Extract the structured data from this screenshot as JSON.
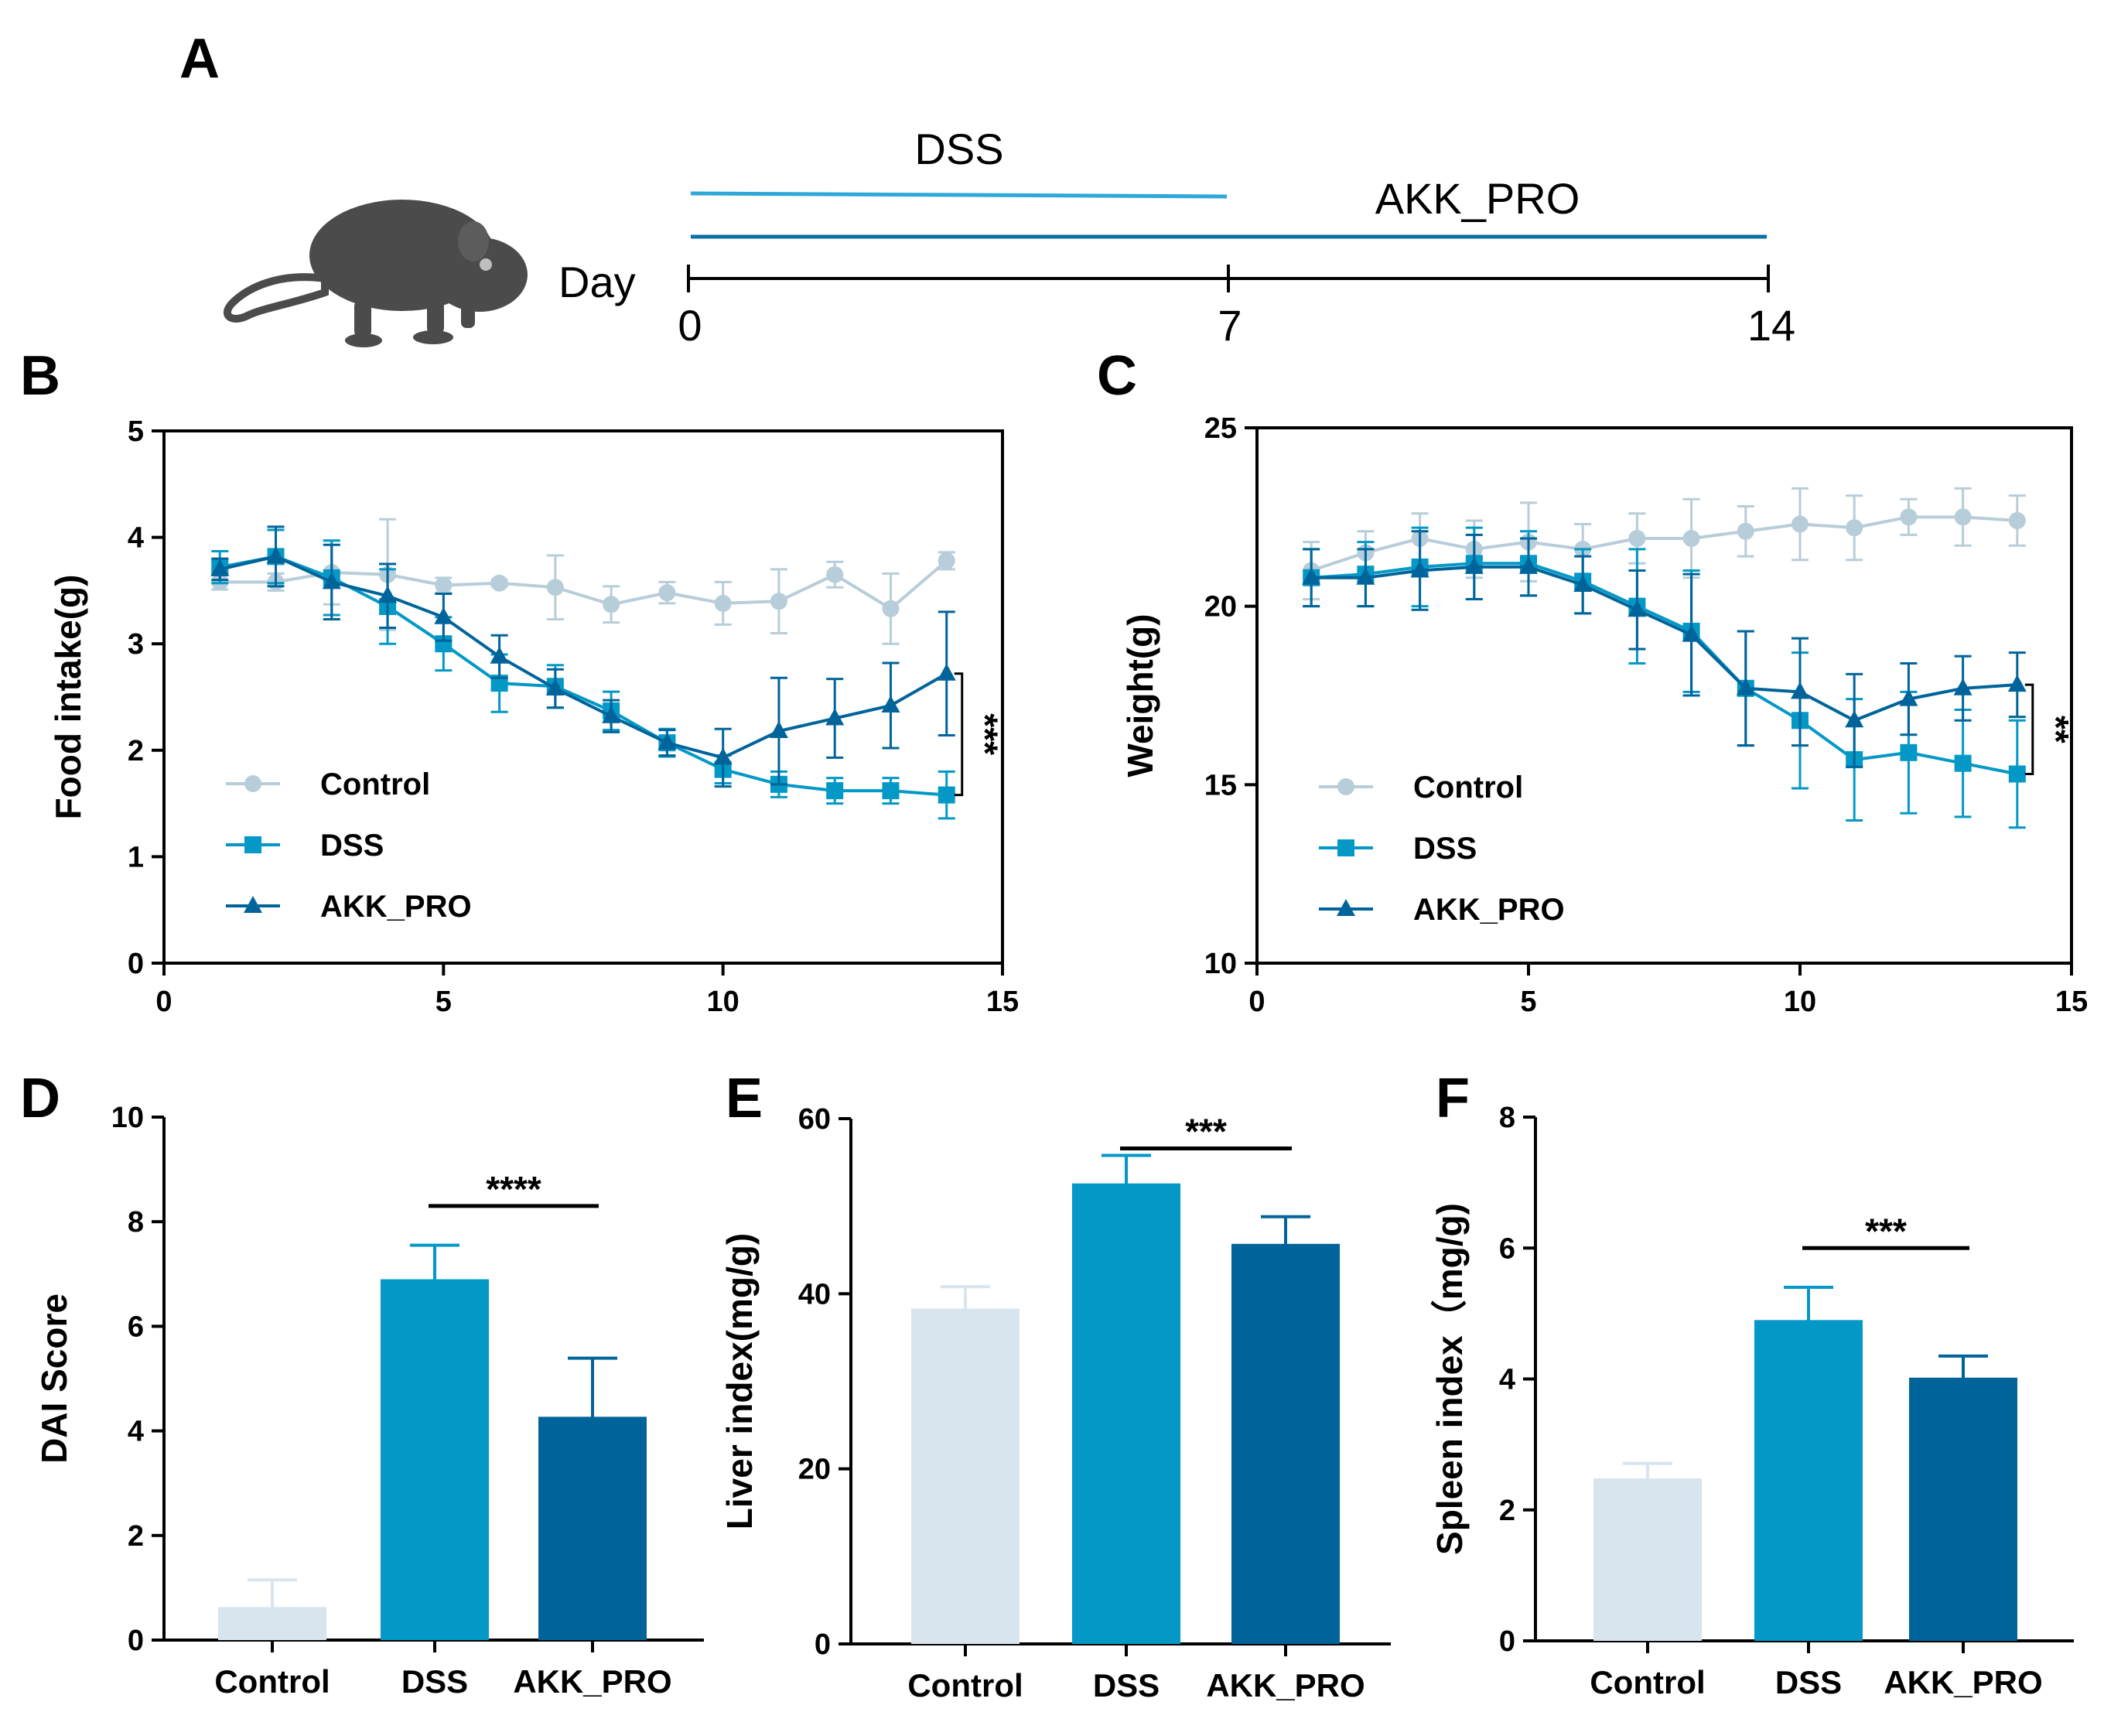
{
  "colors": {
    "control": "#d8e4ee",
    "control_line": "#b7cdd9",
    "dss": "#0398c6",
    "akk": "#00649a",
    "timeline_dss": "#2ea8d8",
    "timeline_akk": "#0a6fa3",
    "axis": "#000000"
  },
  "panel_a": {
    "letter": "A",
    "day_label": "Day",
    "dss_label": "DSS",
    "akk_label": "AKK_PRO",
    "ticks": [
      "0",
      "7",
      "14"
    ],
    "mouse_icon": "mouse-icon"
  },
  "chart_data": [
    {
      "id": "B",
      "type": "line",
      "letter": "B",
      "ylabel": "Food intake(g)",
      "xlabel": "",
      "xlim": [
        0,
        15
      ],
      "ylim": [
        0,
        5
      ],
      "xticks": [
        "0",
        "5",
        "10",
        "15"
      ],
      "yticks": [
        "0",
        "1",
        "2",
        "3",
        "4",
        "5"
      ],
      "legend": [
        "Control",
        "DSS",
        "AKK_PRO"
      ],
      "significance": "***",
      "x": [
        1,
        2,
        3,
        4,
        5,
        6,
        7,
        8,
        9,
        10,
        11,
        12,
        13,
        14
      ],
      "series": [
        {
          "name": "Control",
          "marker": "circle",
          "values": [
            3.58,
            3.58,
            3.67,
            3.65,
            3.55,
            3.57,
            3.53,
            3.37,
            3.48,
            3.38,
            3.4,
            3.65,
            3.33,
            3.78
          ],
          "errors": [
            0.07,
            0.08,
            0.3,
            0.52,
            0.07,
            0.03,
            0.3,
            0.17,
            0.1,
            0.2,
            0.3,
            0.12,
            0.33,
            0.08
          ]
        },
        {
          "name": "DSS",
          "marker": "square",
          "values": [
            3.72,
            3.82,
            3.62,
            3.35,
            3.0,
            2.63,
            2.6,
            2.37,
            2.07,
            1.82,
            1.68,
            1.62,
            1.62,
            1.58
          ],
          "errors": [
            0.15,
            0.25,
            0.35,
            0.35,
            0.25,
            0.27,
            0.2,
            0.18,
            0.13,
            0.13,
            0.12,
            0.12,
            0.12,
            0.22
          ]
        },
        {
          "name": "AKK_PRO",
          "marker": "triangle",
          "values": [
            3.7,
            3.82,
            3.58,
            3.45,
            3.25,
            2.88,
            2.58,
            2.32,
            2.07,
            1.93,
            2.18,
            2.3,
            2.42,
            2.72
          ],
          "errors": [
            0.1,
            0.28,
            0.35,
            0.3,
            0.22,
            0.2,
            0.18,
            0.15,
            0.12,
            0.27,
            0.5,
            0.37,
            0.4,
            0.58
          ]
        }
      ]
    },
    {
      "id": "C",
      "type": "line",
      "letter": "C",
      "ylabel": "Weight(g)",
      "xlabel": "",
      "xlim": [
        0,
        15
      ],
      "ylim": [
        10,
        25
      ],
      "xticks": [
        "0",
        "5",
        "10",
        "15"
      ],
      "yticks": [
        "10",
        "15",
        "20",
        "25"
      ],
      "legend": [
        "Control",
        "DSS",
        "AKK_PRO"
      ],
      "significance": "**",
      "x": [
        1,
        2,
        3,
        4,
        5,
        6,
        7,
        8,
        9,
        10,
        11,
        12,
        13,
        14
      ],
      "series": [
        {
          "name": "Control",
          "marker": "circle",
          "values": [
            21.0,
            21.5,
            21.9,
            21.6,
            21.8,
            21.6,
            21.9,
            21.9,
            22.1,
            22.3,
            22.2,
            22.5,
            22.5,
            22.4
          ],
          "errors": [
            0.8,
            0.6,
            0.7,
            0.8,
            1.1,
            0.7,
            0.7,
            1.1,
            0.7,
            1.0,
            0.9,
            0.5,
            0.8,
            0.7
          ]
        },
        {
          "name": "DSS",
          "marker": "square",
          "values": [
            20.8,
            20.9,
            21.1,
            21.2,
            21.2,
            20.7,
            20.0,
            19.3,
            17.7,
            16.8,
            15.7,
            15.9,
            15.6,
            15.3
          ],
          "errors": [
            0.8,
            0.9,
            1.1,
            1.0,
            0.9,
            0.9,
            1.6,
            1.7,
            1.6,
            1.9,
            1.7,
            1.7,
            1.5,
            1.5
          ]
        },
        {
          "name": "AKK_PRO",
          "marker": "triangle",
          "values": [
            20.8,
            20.8,
            21.0,
            21.1,
            21.1,
            20.6,
            19.9,
            19.2,
            17.7,
            17.6,
            16.8,
            17.4,
            17.7,
            17.8
          ],
          "errors": [
            0.8,
            0.8,
            1.1,
            0.9,
            0.8,
            0.8,
            1.1,
            1.7,
            1.6,
            1.5,
            1.3,
            1.0,
            0.9,
            0.9
          ]
        }
      ]
    },
    {
      "id": "D",
      "type": "bar",
      "letter": "D",
      "ylabel": "DAI Score",
      "xlabel": "",
      "ylim": [
        0,
        10
      ],
      "yticks": [
        "0",
        "2",
        "4",
        "6",
        "8",
        "10"
      ],
      "categories": [
        "Control",
        "DSS",
        "AKK_PRO"
      ],
      "values": [
        0.63,
        6.9,
        4.27
      ],
      "errors": [
        0.52,
        0.65,
        1.12
      ],
      "significance": "****",
      "sig_y": 8.3
    },
    {
      "id": "E",
      "type": "bar",
      "letter": "E",
      "ylabel": "Liver index(mg/g)",
      "xlabel": "",
      "ylim": [
        0,
        60
      ],
      "yticks": [
        "0",
        "20",
        "40",
        "60"
      ],
      "categories": [
        "Control",
        "DSS",
        "AKK_PRO"
      ],
      "values": [
        38.3,
        52.6,
        45.7
      ],
      "errors": [
        2.5,
        3.2,
        3.1
      ],
      "significance": "***",
      "sig_y": 56.6
    },
    {
      "id": "F",
      "type": "bar",
      "letter": "F",
      "ylabel": "Spleen index（mg/g)",
      "xlabel": "",
      "ylim": [
        0,
        8
      ],
      "yticks": [
        "0",
        "2",
        "4",
        "6",
        "8"
      ],
      "categories": [
        "Control",
        "DSS",
        "AKK_PRO"
      ],
      "values": [
        2.48,
        4.9,
        4.02
      ],
      "errors": [
        0.23,
        0.5,
        0.33
      ],
      "significance": "***",
      "sig_y": 6.0
    }
  ]
}
